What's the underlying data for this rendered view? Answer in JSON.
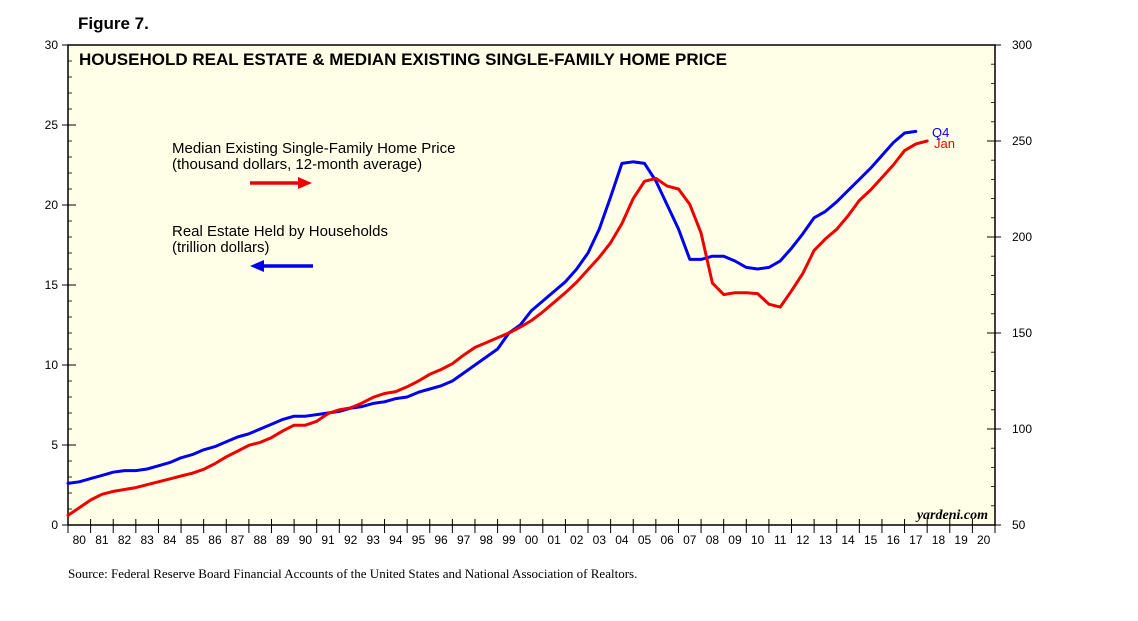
{
  "figure_label": "Figure 7.",
  "source": "Source: Federal Reserve Board Financial Accounts of the United States and National Association of Realtors.",
  "chart_data": {
    "type": "line",
    "title": "HOUSEHOLD REAL ESTATE & MEDIAN EXISTING SINGLE-FAMILY HOME PRICE",
    "watermark": "yardeni.com",
    "grid": false,
    "background": "#ffffe8",
    "x_ticks": [
      "80",
      "81",
      "82",
      "83",
      "84",
      "85",
      "86",
      "87",
      "88",
      "89",
      "90",
      "91",
      "92",
      "93",
      "94",
      "95",
      "96",
      "97",
      "98",
      "99",
      "00",
      "01",
      "02",
      "03",
      "04",
      "05",
      "06",
      "07",
      "08",
      "09",
      "10",
      "11",
      "12",
      "13",
      "14",
      "15",
      "16",
      "17",
      "18",
      "19",
      "20"
    ],
    "x_range": [
      1980,
      2021
    ],
    "left_axis": {
      "range": [
        0,
        30
      ],
      "ticks": [
        "0",
        "5",
        "10",
        "15",
        "20",
        "25",
        "30"
      ]
    },
    "right_axis": {
      "range": [
        50,
        300
      ],
      "ticks": [
        "50",
        "100",
        "150",
        "200",
        "250",
        "300"
      ]
    },
    "legend": [
      {
        "line1": "Median Existing Single-Family Home Price",
        "line2": "(thousand dollars, 12-month average)",
        "arrow": "right",
        "color": "#ee0000"
      },
      {
        "line1": "Real Estate Held by Households",
        "line2": "(trillion dollars)",
        "arrow": "left",
        "color": "#0000ee"
      }
    ],
    "series": [
      {
        "name": "Real Estate Held by Households",
        "axis": "left",
        "color": "#0000ee",
        "end_label": "Q4",
        "x": [
          1980,
          1980.5,
          1981,
          1981.5,
          1982,
          1982.5,
          1983,
          1983.5,
          1984,
          1984.5,
          1985,
          1985.5,
          1986,
          1986.5,
          1987,
          1987.5,
          1988,
          1988.5,
          1989,
          1989.5,
          1990,
          1990.5,
          1991,
          1991.5,
          1992,
          1992.5,
          1993,
          1993.5,
          1994,
          1994.5,
          1995,
          1995.5,
          1996,
          1996.5,
          1997,
          1997.5,
          1998,
          1998.5,
          1999,
          1999.5,
          2000,
          2000.5,
          2001,
          2001.5,
          2002,
          2002.5,
          2003,
          2003.5,
          2004,
          2004.5,
          2005,
          2005.5,
          2006,
          2006.5,
          2007,
          2007.5,
          2008,
          2008.5,
          2009,
          2009.5,
          2010,
          2010.5,
          2011,
          2011.5,
          2012,
          2012.5,
          2013,
          2013.5,
          2014,
          2014.5,
          2015,
          2015.5,
          2016,
          2016.5,
          2017,
          2017.5
        ],
        "y": [
          2.6,
          2.7,
          2.9,
          3.1,
          3.3,
          3.4,
          3.4,
          3.5,
          3.7,
          3.9,
          4.2,
          4.4,
          4.7,
          4.9,
          5.2,
          5.5,
          5.7,
          6.0,
          6.3,
          6.6,
          6.8,
          6.8,
          6.9,
          7.0,
          7.1,
          7.3,
          7.4,
          7.6,
          7.7,
          7.9,
          8.0,
          8.3,
          8.5,
          8.7,
          9.0,
          9.5,
          10.0,
          10.5,
          11.0,
          12.0,
          12.5,
          13.4,
          14.0,
          14.6,
          15.2,
          16.0,
          17.0,
          18.5,
          20.5,
          22.6,
          22.7,
          22.6,
          21.5,
          20.0,
          18.5,
          16.6,
          16.6,
          16.8,
          16.8,
          16.5,
          16.1,
          16.0,
          16.1,
          16.5,
          17.3,
          18.2,
          19.2,
          19.6,
          20.2,
          20.9,
          21.6,
          22.3,
          23.1,
          23.9,
          24.5,
          24.6
        ]
      },
      {
        "name": "Median Existing Single-Family Home Price",
        "axis": "right",
        "color": "#ee0000",
        "end_label": "Jan",
        "x": [
          1980,
          1980.5,
          1981,
          1981.5,
          1982,
          1982.5,
          1983,
          1983.5,
          1984,
          1984.5,
          1985,
          1985.5,
          1986,
          1986.5,
          1987,
          1987.5,
          1988,
          1988.5,
          1989,
          1989.5,
          1990,
          1990.5,
          1991,
          1991.5,
          1992,
          1992.5,
          1993,
          1993.5,
          1994,
          1994.5,
          1995,
          1995.5,
          1996,
          1996.5,
          1997,
          1997.5,
          1998,
          1998.5,
          1999,
          1999.5,
          2000,
          2000.5,
          2001,
          2001.5,
          2002,
          2002.5,
          2003,
          2003.5,
          2004,
          2004.5,
          2005,
          2005.5,
          2006,
          2006.5,
          2007,
          2007.5,
          2008,
          2008.5,
          2009,
          2009.5,
          2010,
          2010.5,
          2011,
          2011.5,
          2012,
          2012.5,
          2013,
          2013.5,
          2014,
          2014.5,
          2015,
          2015.5,
          2016,
          2016.5,
          2017,
          2017.5,
          2018
        ],
        "y": [
          55,
          59,
          63,
          66,
          67.5,
          68.5,
          69.5,
          71,
          72.5,
          74,
          75.5,
          77,
          79,
          82,
          85.5,
          88.5,
          91.5,
          93,
          95.5,
          99,
          102,
          102,
          104,
          108,
          110,
          111,
          113.5,
          116.5,
          118.5,
          119.5,
          122,
          125,
          128.5,
          131,
          134,
          138.5,
          142.5,
          145,
          147.5,
          150,
          153,
          156.5,
          161,
          166,
          171,
          176.5,
          183,
          189.5,
          197,
          207,
          220,
          229,
          230.5,
          226.5,
          225,
          217,
          202,
          176,
          170,
          171,
          171,
          170.5,
          165,
          163.5,
          172,
          181,
          193,
          199,
          204,
          211,
          219,
          224.5,
          231,
          237.5,
          245,
          248.5,
          250
        ]
      }
    ]
  }
}
